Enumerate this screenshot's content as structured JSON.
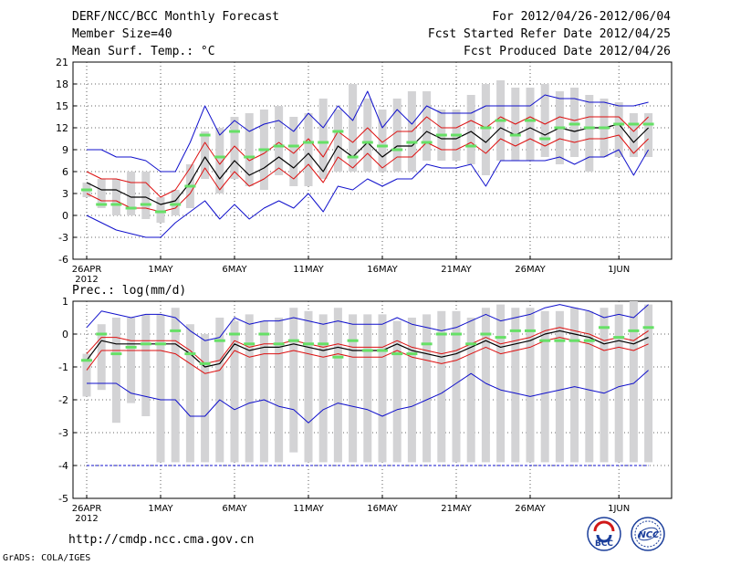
{
  "header": {
    "title": "DERF/NCC/BCC Monthly Forecast",
    "member_size": "Member Size=40",
    "forecast_range": "For 2012/04/26-2012/06/04",
    "start_date": "Fcst Started Refer Date 2012/04/25",
    "produced_date": "Fcst Produced Date 2012/04/26"
  },
  "footer": {
    "url": "http://cmdp.ncc.cma.gov.cn",
    "credit": "GrADS: COLA/IGES",
    "logo_bcc": "BCC",
    "logo_ncc": "NCC"
  },
  "colors": {
    "box": "#d3d3d5",
    "median": "#66e066",
    "mean": "#000000",
    "stdev": "#dd1111",
    "extreme": "#1111cc",
    "grid": "#333333"
  },
  "chart_data": [
    {
      "type": "box-line",
      "title": "Mean Surf. Temp.: °C",
      "ylim": [
        -6,
        21
      ],
      "yticks": [
        -6,
        -3,
        0,
        3,
        6,
        9,
        12,
        15,
        18,
        21
      ],
      "x_tick_labels": [
        "26APR",
        "1MAY",
        "6MAY",
        "11MAY",
        "16MAY",
        "21MAY",
        "26MAY",
        "1JUN"
      ],
      "x_tick_days": [
        0,
        5,
        10,
        15,
        20,
        25,
        30,
        36
      ],
      "x_year_label": "2012",
      "days": 39,
      "ens_mean": [
        4.5,
        3.5,
        3.5,
        2.5,
        2.5,
        1.5,
        2,
        4.5,
        8,
        5,
        7.5,
        5.5,
        6.5,
        8,
        6.5,
        8.5,
        6,
        9.5,
        8,
        10,
        8,
        9.5,
        9.5,
        11.5,
        10.5,
        10.5,
        11.5,
        10,
        12,
        11,
        12,
        11,
        12,
        11.5,
        12,
        12,
        12.5,
        10,
        12
      ],
      "mean_plus_sd": [
        6,
        5,
        5,
        4.5,
        4.5,
        2.5,
        3.5,
        6.5,
        10,
        7,
        9.5,
        7.5,
        8.5,
        10,
        8.5,
        10.5,
        8,
        11.5,
        10,
        12,
        10,
        11.5,
        11.5,
        13.5,
        12,
        12,
        13,
        12,
        13.5,
        12.5,
        13.5,
        12.5,
        13.5,
        13,
        13.5,
        13.5,
        13.5,
        11.5,
        13.5
      ],
      "mean_minus_sd": [
        3,
        2,
        2,
        1,
        1,
        0.5,
        1,
        3,
        6.5,
        3.5,
        6,
        4,
        5,
        6.5,
        5,
        7,
        4.5,
        8,
        6.5,
        8.5,
        6.5,
        8,
        8,
        10,
        9,
        9,
        10,
        8.5,
        10.5,
        9.5,
        10.5,
        9.5,
        10.5,
        10,
        10.5,
        10.5,
        11,
        8.5,
        10.5
      ],
      "ens_max": [
        9,
        9,
        8,
        8,
        7.5,
        6,
        6,
        10,
        15,
        11,
        13,
        11.5,
        12.5,
        13,
        11.5,
        14,
        12,
        15,
        13,
        17,
        12,
        14.5,
        12.5,
        15,
        14,
        14,
        14,
        15,
        15,
        15,
        15,
        16.5,
        16,
        16,
        15.5,
        15.5,
        15,
        15,
        15.5
      ],
      "ens_min": [
        0,
        -1,
        -2,
        -2.5,
        -3,
        -3,
        -1,
        0.5,
        2,
        -0.5,
        1.5,
        -0.5,
        1,
        2,
        1,
        3,
        0.5,
        4,
        3.5,
        5,
        4,
        5,
        5,
        7,
        6.5,
        6.5,
        7,
        4,
        7.5,
        7.5,
        7.5,
        7.5,
        8,
        7,
        8,
        8,
        9,
        5.5,
        9
      ],
      "box_max": [
        4.5,
        5,
        5,
        6,
        6,
        2.5,
        3.5,
        7,
        11.5,
        12,
        13.5,
        14,
        14.5,
        15,
        13.5,
        14,
        16,
        14.5,
        18,
        16,
        14.5,
        16,
        17,
        17,
        14.5,
        14.5,
        16.5,
        18,
        18.5,
        17.5,
        17.5,
        18,
        17,
        17.5,
        16.5,
        16,
        15.5,
        14,
        14
      ],
      "box_min": [
        2.5,
        1,
        0,
        0,
        -0.5,
        -1,
        0,
        1,
        5,
        3,
        5,
        4,
        3.5,
        5.5,
        4,
        4,
        5,
        6,
        6,
        6,
        6,
        6,
        6,
        7.5,
        7.5,
        7.5,
        7,
        5.5,
        7.5,
        7.5,
        7.5,
        8,
        7,
        8,
        6,
        8,
        8,
        8,
        8
      ],
      "median": [
        3.5,
        1.5,
        1.5,
        1,
        1.5,
        0.5,
        1.5,
        4,
        11,
        8,
        11.5,
        8,
        9,
        9.5,
        9.5,
        10,
        10,
        11.5,
        8,
        10,
        9.5,
        9,
        10,
        10,
        11,
        11,
        9.5,
        12,
        13,
        11,
        13,
        10.5,
        12,
        12.5,
        12,
        12,
        12.5,
        12.5,
        12.5
      ]
    },
    {
      "type": "box-line",
      "title": "Prec.: log(mm/d)",
      "ylim": [
        -5,
        1
      ],
      "yticks": [
        -5,
        -4,
        -3,
        -2,
        -1,
        0,
        1
      ],
      "x_tick_labels": [
        "26APR",
        "1MAY",
        "6MAY",
        "11MAY",
        "16MAY",
        "21MAY",
        "26MAY",
        "1JUN"
      ],
      "x_tick_days": [
        0,
        5,
        10,
        15,
        20,
        25,
        30,
        36
      ],
      "x_year_label": "2012",
      "days": 39,
      "reference_line": -4,
      "ens_mean": [
        -0.8,
        -0.2,
        -0.3,
        -0.3,
        -0.3,
        -0.3,
        -0.3,
        -0.6,
        -1.0,
        -0.9,
        -0.3,
        -0.5,
        -0.4,
        -0.4,
        -0.3,
        -0.4,
        -0.5,
        -0.4,
        -0.5,
        -0.5,
        -0.5,
        -0.3,
        -0.5,
        -0.6,
        -0.7,
        -0.6,
        -0.4,
        -0.2,
        -0.4,
        -0.3,
        -0.2,
        0.0,
        0.1,
        0.0,
        -0.1,
        -0.3,
        -0.2,
        -0.3,
        -0.1
      ],
      "mean_plus_sd": [
        -0.6,
        -0.1,
        -0.1,
        -0.2,
        -0.2,
        -0.2,
        -0.2,
        -0.5,
        -0.9,
        -0.8,
        -0.2,
        -0.4,
        -0.3,
        -0.3,
        -0.2,
        -0.3,
        -0.4,
        -0.3,
        -0.4,
        -0.4,
        -0.4,
        -0.2,
        -0.4,
        -0.5,
        -0.6,
        -0.5,
        -0.3,
        -0.1,
        -0.3,
        -0.2,
        -0.1,
        0.1,
        0.2,
        0.1,
        0.0,
        -0.2,
        -0.1,
        -0.2,
        0.1
      ],
      "mean_minus_sd": [
        -1.1,
        -0.5,
        -0.5,
        -0.5,
        -0.5,
        -0.5,
        -0.6,
        -0.9,
        -1.2,
        -1.1,
        -0.5,
        -0.7,
        -0.6,
        -0.6,
        -0.5,
        -0.6,
        -0.7,
        -0.6,
        -0.7,
        -0.7,
        -0.7,
        -0.5,
        -0.7,
        -0.8,
        -0.9,
        -0.8,
        -0.6,
        -0.4,
        -0.6,
        -0.5,
        -0.4,
        -0.2,
        -0.1,
        -0.2,
        -0.3,
        -0.5,
        -0.4,
        -0.5,
        -0.3
      ],
      "ens_max": [
        0.2,
        0.7,
        0.6,
        0.5,
        0.6,
        0.6,
        0.5,
        0.1,
        -0.2,
        -0.1,
        0.5,
        0.3,
        0.4,
        0.4,
        0.5,
        0.4,
        0.3,
        0.4,
        0.3,
        0.3,
        0.3,
        0.5,
        0.3,
        0.2,
        0.1,
        0.2,
        0.4,
        0.6,
        0.4,
        0.5,
        0.6,
        0.8,
        0.9,
        0.8,
        0.7,
        0.5,
        0.6,
        0.5,
        0.9
      ],
      "ens_min": [
        -1.5,
        -1.5,
        -1.5,
        -1.8,
        -1.9,
        -2.0,
        -2.0,
        -2.5,
        -2.5,
        -2.0,
        -2.3,
        -2.1,
        -2.0,
        -2.2,
        -2.3,
        -2.7,
        -2.3,
        -2.1,
        -2.2,
        -2.3,
        -2.5,
        -2.3,
        -2.2,
        -2.0,
        -1.8,
        -1.5,
        -1.2,
        -1.5,
        -1.7,
        -1.8,
        -1.9,
        -1.8,
        -1.7,
        -1.6,
        -1.7,
        -1.8,
        -1.6,
        -1.5,
        -1.1
      ],
      "box_max": [
        -0.6,
        0.3,
        0.5,
        0.5,
        0.6,
        0.6,
        0.8,
        0.3,
        0.0,
        0.5,
        0.4,
        0.6,
        0.4,
        0.5,
        0.8,
        0.7,
        0.6,
        0.8,
        0.6,
        0.6,
        0.6,
        0.4,
        0.5,
        0.6,
        0.7,
        0.7,
        0.5,
        0.8,
        0.9,
        0.8,
        0.8,
        0.7,
        0.7,
        0.8,
        0.7,
        0.8,
        0.9,
        1.0,
        0.9
      ],
      "box_min": [
        -1.9,
        -1.7,
        -2.7,
        -2.1,
        -2.5,
        -3.9,
        -3.9,
        -3.9,
        -3.9,
        -3.9,
        -3.9,
        -3.9,
        -3.9,
        -3.9,
        -3.6,
        -3.9,
        -3.9,
        -3.9,
        -3.9,
        -3.9,
        -3.9,
        -3.9,
        -3.9,
        -3.9,
        -3.9,
        -3.9,
        -3.9,
        -3.9,
        -3.9,
        -3.9,
        -3.9,
        -3.9,
        -3.9,
        -3.9,
        -3.9,
        -3.9,
        -3.9,
        -3.9,
        -3.9
      ],
      "median": [
        -0.8,
        0.0,
        -0.6,
        -0.4,
        -0.3,
        -0.3,
        0.1,
        -0.6,
        -0.9,
        -0.2,
        0.0,
        -0.3,
        0.0,
        -0.3,
        -0.2,
        -0.3,
        -0.3,
        -0.7,
        -0.2,
        -0.5,
        -0.5,
        -0.6,
        -0.6,
        -0.3,
        0.0,
        0.0,
        -0.3,
        0.0,
        -0.1,
        0.1,
        0.1,
        -0.2,
        -0.2,
        -0.2,
        -0.2,
        0.2,
        -0.1,
        0.1,
        0.2
      ]
    }
  ]
}
